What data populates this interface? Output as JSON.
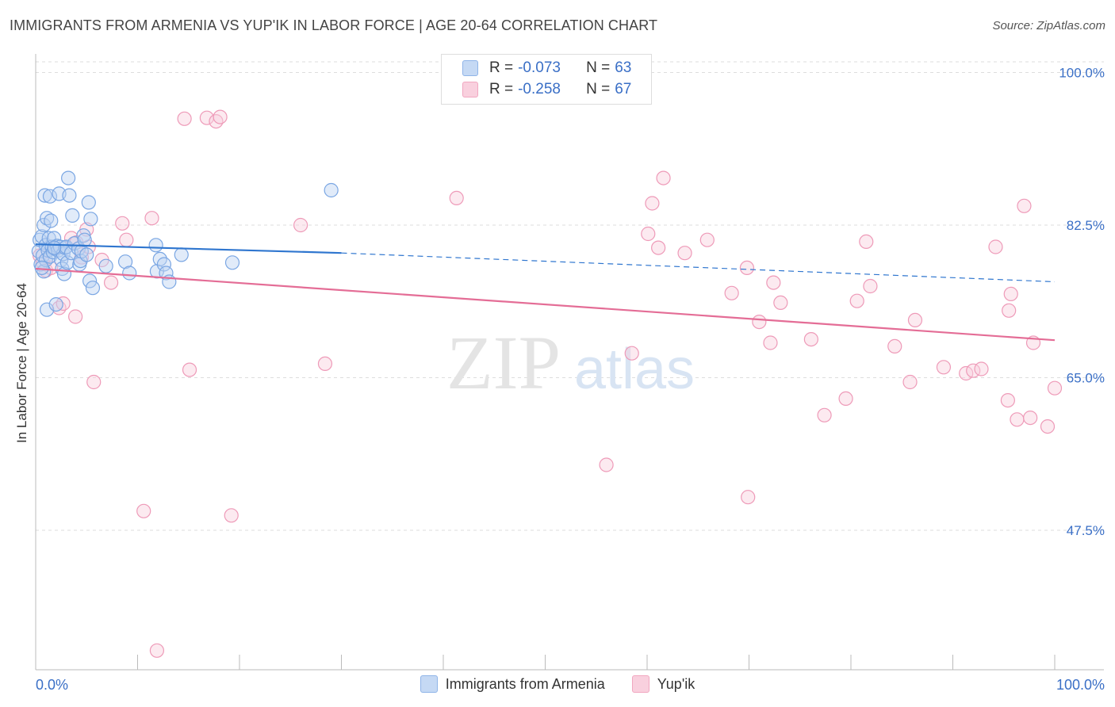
{
  "title": "IMMIGRANTS FROM ARMENIA VS YUP'IK IN LABOR FORCE | AGE 20-64 CORRELATION CHART",
  "source": "Source: ZipAtlas.com",
  "watermark": {
    "zip": "ZIP",
    "atlas": "atlas"
  },
  "colors": {
    "blue": "#8fb4e8",
    "blue_line": "#2f76cf",
    "pink": "#f1a7c0",
    "pink_line": "#e46d96",
    "axis_text": "#3a6fc6",
    "grid": "#dddddd"
  },
  "legend_box": {
    "rows": [
      {
        "r_label": "R =",
        "r_value": "-0.073",
        "n_label": "N =",
        "n_value": "63",
        "color": "#8fb4e8"
      },
      {
        "r_label": "R =",
        "r_value": "-0.258",
        "n_label": "N =",
        "n_value": "67",
        "color": "#f1a7c0"
      }
    ]
  },
  "legend_bottom": [
    {
      "label": "Immigrants from Armenia",
      "color": "#8fb4e8"
    },
    {
      "label": "Yup'ik",
      "color": "#f1a7c0"
    }
  ],
  "chart_data": {
    "type": "scatter",
    "title": "IMMIGRANTS FROM ARMENIA VS YUP'IK IN LABOR FORCE | AGE 20-64 CORRELATION CHART",
    "xlabel": "",
    "ylabel": "In Labor Force | Age 20-64",
    "xlim": [
      0,
      100
    ],
    "ylim": [
      31.5,
      101.5
    ],
    "x_tick_labels": [
      {
        "value": 0,
        "label": "0.0%"
      },
      {
        "value": 100,
        "label": "100.0%"
      }
    ],
    "y_ticks": [
      {
        "value": 100,
        "label": "100.0%"
      },
      {
        "value": 82.5,
        "label": "82.5%"
      },
      {
        "value": 65,
        "label": "65.0%"
      },
      {
        "value": 47.5,
        "label": "47.5%"
      }
    ],
    "series": [
      {
        "name": "Immigrants from Armenia",
        "r": -0.073,
        "n": 63,
        "trend": {
          "x0": 0,
          "y0": 80.3,
          "x1": 30,
          "y1": 79.3,
          "x_dashed_end": 100,
          "y_dashed_end": 76.0
        },
        "points": [
          [
            0.3,
            79.5
          ],
          [
            0.4,
            80.8
          ],
          [
            0.5,
            78.0
          ],
          [
            0.6,
            81.2
          ],
          [
            0.7,
            79.0
          ],
          [
            0.8,
            77.2
          ],
          [
            0.8,
            82.5
          ],
          [
            0.9,
            85.9
          ],
          [
            1.0,
            78.5
          ],
          [
            1.0,
            80.2
          ],
          [
            1.1,
            83.3
          ],
          [
            1.1,
            72.8
          ],
          [
            1.2,
            79.6
          ],
          [
            1.3,
            81.0
          ],
          [
            1.4,
            85.8
          ],
          [
            1.4,
            78.9
          ],
          [
            1.5,
            83.0
          ],
          [
            1.6,
            80.0
          ],
          [
            1.7,
            79.4
          ],
          [
            1.8,
            81.0
          ],
          [
            1.9,
            79.8
          ],
          [
            2.0,
            73.4
          ],
          [
            2.1,
            80.1
          ],
          [
            2.2,
            79.6
          ],
          [
            2.3,
            86.1
          ],
          [
            2.4,
            80.0
          ],
          [
            2.5,
            78.5
          ],
          [
            2.6,
            77.5
          ],
          [
            2.7,
            79.2
          ],
          [
            2.8,
            76.9
          ],
          [
            2.9,
            79.9
          ],
          [
            3.0,
            80.0
          ],
          [
            3.1,
            78.2
          ],
          [
            3.2,
            87.9
          ],
          [
            3.3,
            85.9
          ],
          [
            3.5,
            79.3
          ],
          [
            3.6,
            83.6
          ],
          [
            3.8,
            80.4
          ],
          [
            4.2,
            79.8
          ],
          [
            4.3,
            78.0
          ],
          [
            4.4,
            78.4
          ],
          [
            4.5,
            79.5
          ],
          [
            4.7,
            81.3
          ],
          [
            4.8,
            80.8
          ],
          [
            5.0,
            79.1
          ],
          [
            5.2,
            85.1
          ],
          [
            5.3,
            76.1
          ],
          [
            5.4,
            83.2
          ],
          [
            5.6,
            75.3
          ],
          [
            6.9,
            77.8
          ],
          [
            8.8,
            78.3
          ],
          [
            9.2,
            77.0
          ],
          [
            11.8,
            80.2
          ],
          [
            11.9,
            77.2
          ],
          [
            12.2,
            78.6
          ],
          [
            12.6,
            78.0
          ],
          [
            12.8,
            77.0
          ],
          [
            13.1,
            76.0
          ],
          [
            14.3,
            79.1
          ],
          [
            19.3,
            78.2
          ],
          [
            29.0,
            86.5
          ],
          [
            0.6,
            77.6
          ],
          [
            1.8,
            79.9
          ]
        ]
      },
      {
        "name": "Yup'ik",
        "r": -0.258,
        "n": 67,
        "trend": {
          "x0": 0,
          "y0": 77.5,
          "x1": 100,
          "y1": 69.3
        },
        "points": [
          [
            0.4,
            79.0
          ],
          [
            0.7,
            78.2
          ],
          [
            1.0,
            77.3
          ],
          [
            1.5,
            77.6
          ],
          [
            2.3,
            73.0
          ],
          [
            2.7,
            73.5
          ],
          [
            3.5,
            81.0
          ],
          [
            3.9,
            72.0
          ],
          [
            4.0,
            80.5
          ],
          [
            4.5,
            78.8
          ],
          [
            5.0,
            82.0
          ],
          [
            5.2,
            80.0
          ],
          [
            5.7,
            64.5
          ],
          [
            6.5,
            78.5
          ],
          [
            7.4,
            75.9
          ],
          [
            8.5,
            82.7
          ],
          [
            8.9,
            80.8
          ],
          [
            10.6,
            49.7
          ],
          [
            11.4,
            83.3
          ],
          [
            11.9,
            33.7
          ],
          [
            14.6,
            94.7
          ],
          [
            15.1,
            65.9
          ],
          [
            16.8,
            94.8
          ],
          [
            17.7,
            94.4
          ],
          [
            18.1,
            94.9
          ],
          [
            19.2,
            49.2
          ],
          [
            26.0,
            82.5
          ],
          [
            28.4,
            66.6
          ],
          [
            41.3,
            85.6
          ],
          [
            56.0,
            55.0
          ],
          [
            58.5,
            67.8
          ],
          [
            60.1,
            81.5
          ],
          [
            60.5,
            85.0
          ],
          [
            61.1,
            79.9
          ],
          [
            61.6,
            87.9
          ],
          [
            63.7,
            79.3
          ],
          [
            65.9,
            80.8
          ],
          [
            68.3,
            74.7
          ],
          [
            69.9,
            51.3
          ],
          [
            69.8,
            77.6
          ],
          [
            71.0,
            71.4
          ],
          [
            72.1,
            69.0
          ],
          [
            72.4,
            75.9
          ],
          [
            73.1,
            73.6
          ],
          [
            76.1,
            69.4
          ],
          [
            77.4,
            60.7
          ],
          [
            79.5,
            62.6
          ],
          [
            80.6,
            73.8
          ],
          [
            81.5,
            80.6
          ],
          [
            81.9,
            75.5
          ],
          [
            84.3,
            68.6
          ],
          [
            85.8,
            64.5
          ],
          [
            86.3,
            71.6
          ],
          [
            89.1,
            66.2
          ],
          [
            91.3,
            65.5
          ],
          [
            92.0,
            65.8
          ],
          [
            92.8,
            66.0
          ],
          [
            94.2,
            80.0
          ],
          [
            95.4,
            62.4
          ],
          [
            95.5,
            72.7
          ],
          [
            95.7,
            74.6
          ],
          [
            96.3,
            60.2
          ],
          [
            97.0,
            84.7
          ],
          [
            97.6,
            60.4
          ],
          [
            97.9,
            69.0
          ],
          [
            99.3,
            59.4
          ],
          [
            100.0,
            63.8
          ]
        ]
      }
    ]
  }
}
